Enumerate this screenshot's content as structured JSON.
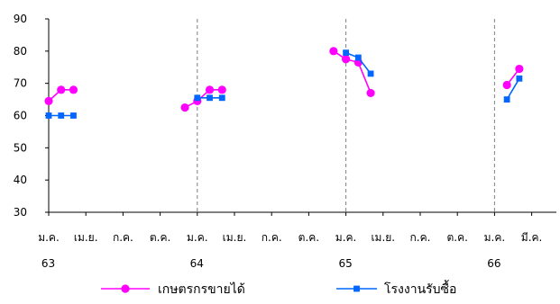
{
  "chart_data": {
    "type": "line",
    "ylim": [
      30,
      90
    ],
    "yticks": [
      30,
      40,
      50,
      60,
      70,
      80,
      90
    ],
    "x_tick_labels": [
      "ม.ค.",
      "เม.ย.",
      "ก.ค.",
      "ต.ค.",
      "ม.ค.",
      "เม.ย.",
      "ก.ค.",
      "ต.ค.",
      "ม.ค.",
      "เม.ย.",
      "ก.ค.",
      "ต.ค.",
      "ม.ค.",
      "มี.ค."
    ],
    "year_labels": [
      {
        "label": "63",
        "tick_index": 0
      },
      {
        "label": "64",
        "tick_index": 4
      },
      {
        "label": "65",
        "tick_index": 8
      },
      {
        "label": "66",
        "tick_index": 12
      }
    ],
    "year_separators_at_tick": [
      4,
      8,
      12
    ],
    "grid": false,
    "legend_position": "bottom",
    "series": [
      {
        "name": "เกษตรกรขายได้",
        "color": "#FF00FF",
        "marker": "circle",
        "segments": [
          [
            {
              "m": 0,
              "v": 64.5
            },
            {
              "m": 1,
              "v": 68
            },
            {
              "m": 2,
              "v": 68
            }
          ],
          [
            {
              "m": 11,
              "v": 62.5
            },
            {
              "m": 12,
              "v": 64.5
            },
            {
              "m": 13,
              "v": 68
            },
            {
              "m": 14,
              "v": 68
            }
          ],
          [
            {
              "m": 23,
              "v": 80
            },
            {
              "m": 24,
              "v": 77.5
            },
            {
              "m": 25,
              "v": 76.5
            },
            {
              "m": 26,
              "v": 67
            }
          ],
          [
            {
              "m": 37,
              "v": 69.5
            },
            {
              "m": 38,
              "v": 74.5
            }
          ]
        ]
      },
      {
        "name": "โรงงานรับซื้อ",
        "color": "#0066FF",
        "marker": "square",
        "segments": [
          [
            {
              "m": 0,
              "v": 60
            },
            {
              "m": 1,
              "v": 60
            },
            {
              "m": 2,
              "v": 60
            }
          ],
          [
            {
              "m": 12,
              "v": 65.5
            },
            {
              "m": 13,
              "v": 65.5
            },
            {
              "m": 14,
              "v": 65.5
            }
          ],
          [
            {
              "m": 24,
              "v": 79.5
            },
            {
              "m": 25,
              "v": 78
            },
            {
              "m": 26,
              "v": 73
            }
          ],
          [
            {
              "m": 37,
              "v": 65
            },
            {
              "m": 38,
              "v": 71.5
            }
          ]
        ]
      }
    ]
  }
}
